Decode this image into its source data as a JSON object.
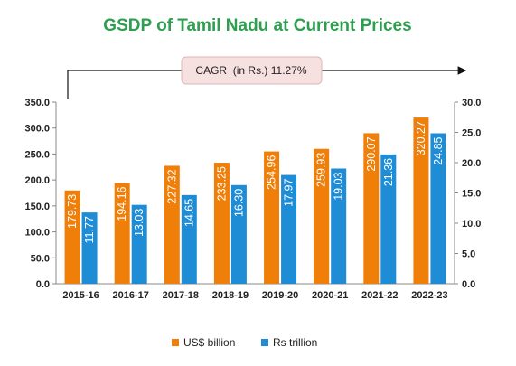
{
  "chart_data": {
    "type": "bar",
    "title": "GSDP of Tamil Nadu at Current Prices",
    "annotation": "CAGR  (in Rs.) 11.27%",
    "categories": [
      "2015-16",
      "2016-17",
      "2017-18",
      "2018-19",
      "2019-20",
      "2020-21",
      "2021-22",
      "2022-23"
    ],
    "series": [
      {
        "name": "US$ billion",
        "axis": "left",
        "color": "#f07f09",
        "values": [
          179.73,
          194.16,
          227.32,
          233.25,
          254.96,
          259.93,
          290.07,
          320.27
        ],
        "labels": [
          "179.73",
          "194.16",
          "227.32",
          "233.25",
          "254.96",
          "259.93",
          "290.07",
          "320.27"
        ]
      },
      {
        "name": "Rs trillion",
        "axis": "right",
        "color": "#1f8dd6",
        "values": [
          11.77,
          13.03,
          14.65,
          16.3,
          17.97,
          19.03,
          21.36,
          24.85
        ],
        "labels": [
          "11.77",
          "13.03",
          "14.65",
          "16.30",
          "17.97",
          "19.03",
          "21.36",
          "24.85"
        ]
      }
    ],
    "y_left": {
      "min": 0,
      "max": 350,
      "ticks": [
        "0.0",
        "50.0",
        "100.0",
        "150.0",
        "200.0",
        "250.0",
        "300.0",
        "350.0"
      ]
    },
    "y_right": {
      "min": 0,
      "max": 30,
      "ticks": [
        "0.0",
        "5.0",
        "10.0",
        "15.0",
        "20.0",
        "25.0",
        "30.0"
      ]
    },
    "grid": false,
    "legend_position": "bottom",
    "colors": {
      "title": "#2e9e4f",
      "annotation_fill": "#f6e0e0",
      "annotation_border": "#d9b8b8",
      "axis": "#888888",
      "tick_text": "#222222",
      "data_label": "#ffffff"
    }
  }
}
